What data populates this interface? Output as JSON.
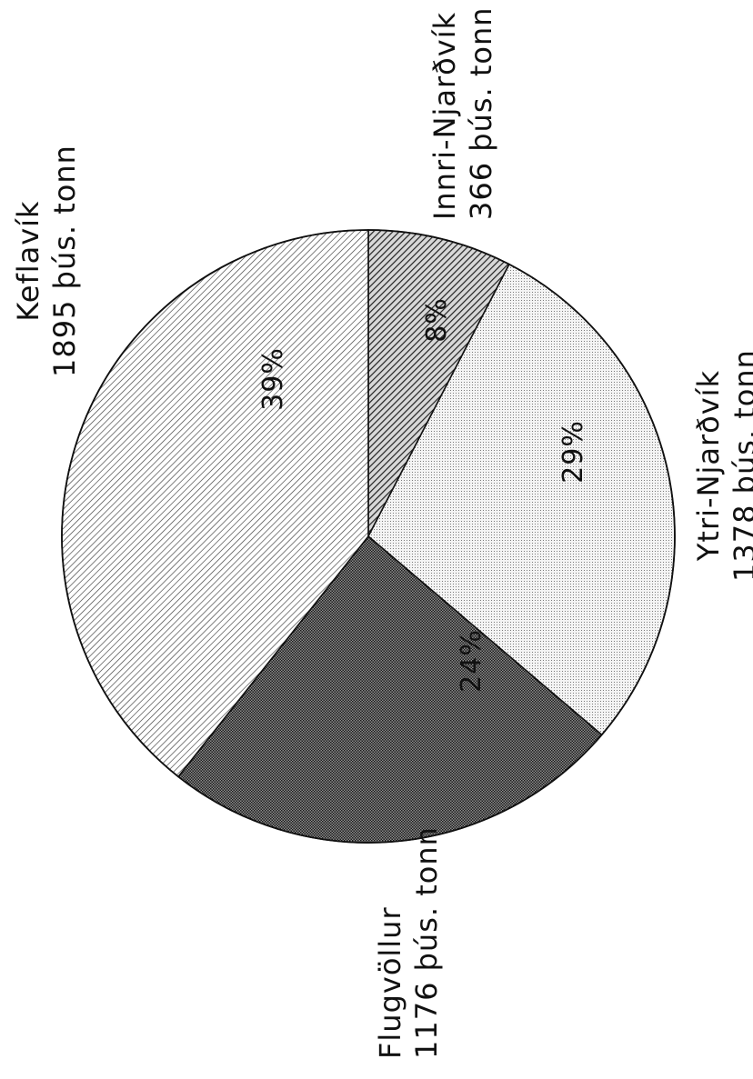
{
  "chart_data": {
    "type": "pie",
    "title": "",
    "unit": "þús. tonn",
    "slices": [
      {
        "label": "Innri-Njarðvík",
        "value": 366,
        "value_label": "366 þús. tonn",
        "percent_label": "8%",
        "pattern": "hatch-dense"
      },
      {
        "label": "Ytri-Njarðvík",
        "value": 1378,
        "value_label": "1378 þús. tonn",
        "percent_label": "29%",
        "pattern": "dots-light"
      },
      {
        "label": "Flugvöllur",
        "value": 1176,
        "value_label": "1176 þús. tonn",
        "percent_label": "24%",
        "pattern": "dots-dark"
      },
      {
        "label": "Keflavík",
        "value": 1895,
        "value_label": "1895 þús. tonn",
        "percent_label": "39%",
        "pattern": "hatch-light"
      }
    ],
    "start_angle_deg": 0,
    "direction": "clockwise",
    "orientation": "rotated-90"
  }
}
